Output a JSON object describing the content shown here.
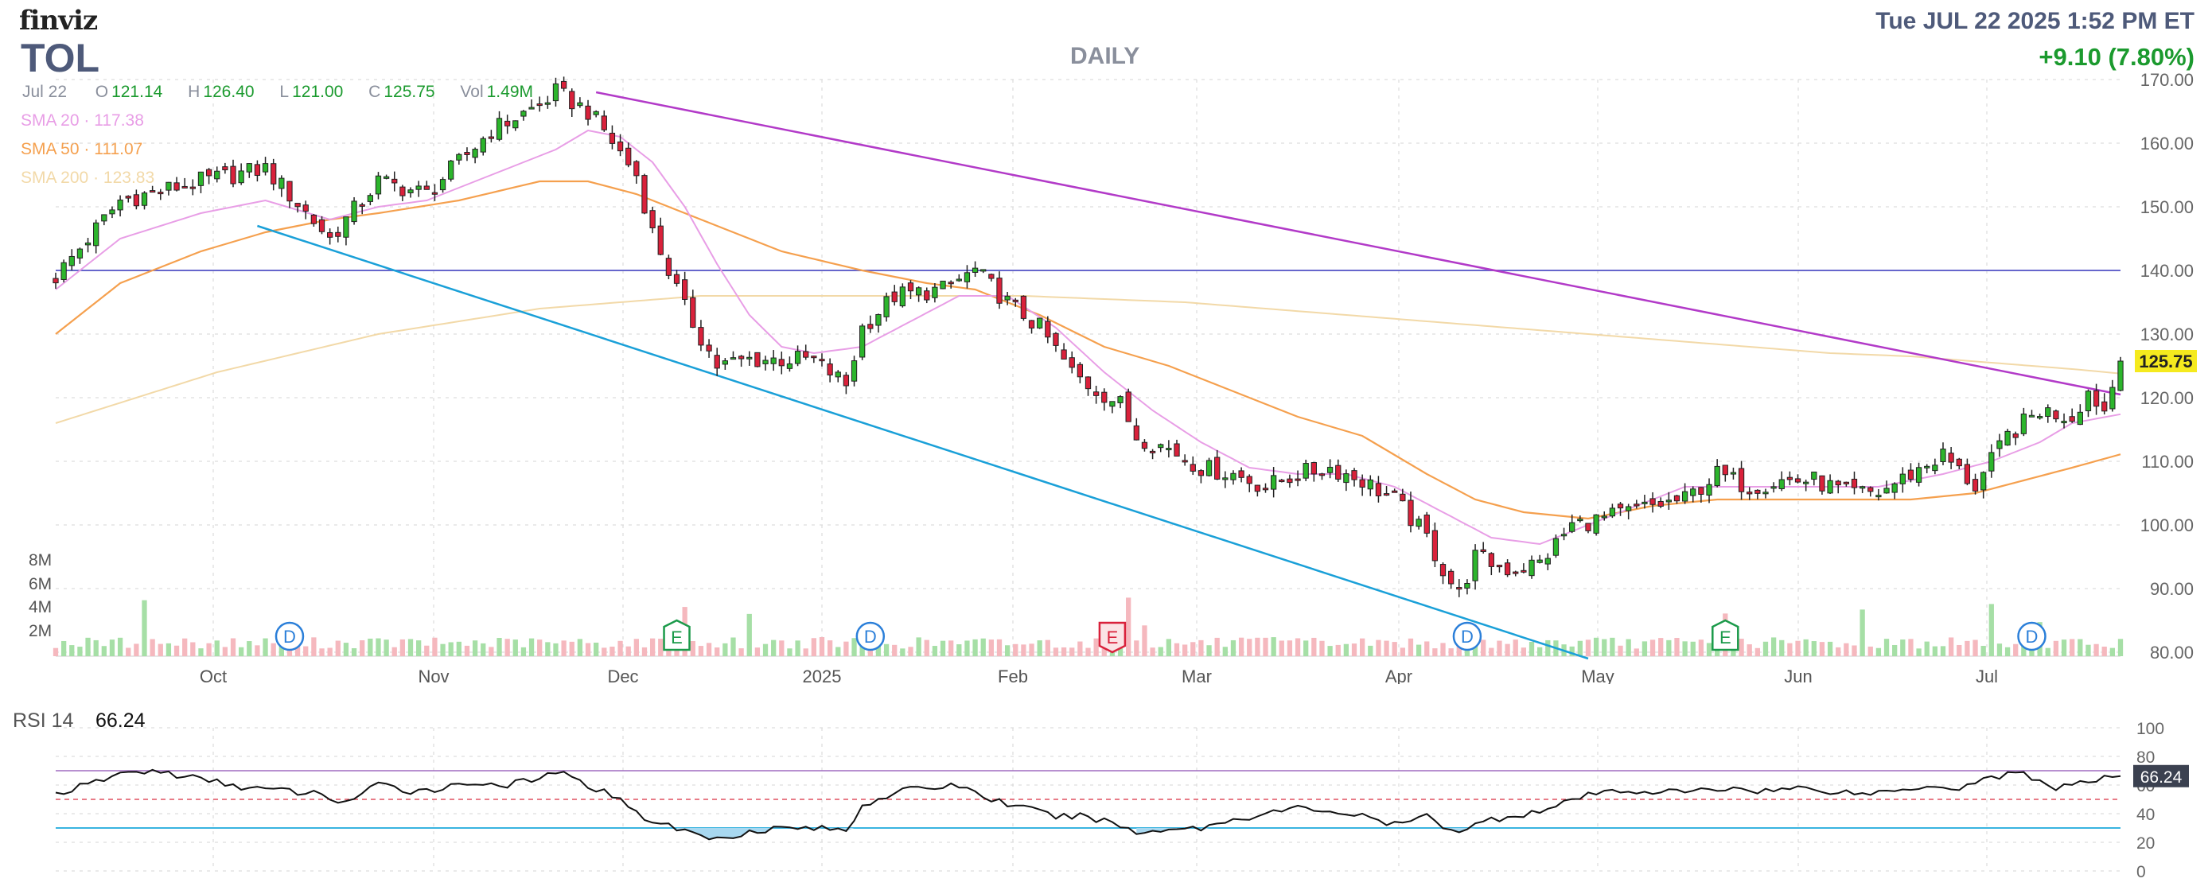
{
  "header": {
    "logo": "finviz",
    "ticker": "TOL",
    "timeframe": "DAILY",
    "datetime": "Tue JUL 22 2025 1:52 PM ET",
    "change": "+9.10 (7.80%)"
  },
  "ohlc": {
    "date": "Jul 22",
    "open_key": "O",
    "open": "121.14",
    "high_key": "H",
    "high": "126.40",
    "low_key": "L",
    "low": "121.00",
    "close_key": "C",
    "close": "125.75",
    "vol_key": "Vol",
    "vol": "1.49M"
  },
  "indicators": [
    {
      "label": "SMA 20",
      "value": "117.38",
      "color": "#e89ee6"
    },
    {
      "label": "SMA 50",
      "value": "111.07",
      "color": "#f5a04e"
    },
    {
      "label": "SMA 200",
      "value": "123.83",
      "color": "#f2d9a8"
    }
  ],
  "colors": {
    "up": "#2cb52c",
    "down": "#d9213b",
    "up_vol": "#a6dfa6",
    "down_vol": "#f5b8be",
    "resistance": "#b23ac8",
    "support": "#1aa0d8",
    "level": "#6666cc",
    "rsi": "#111111"
  },
  "chart_data": [
    {
      "type": "candlestick",
      "title": "TOL",
      "x_labels": [
        "Oct",
        "Nov",
        "Dec",
        "2025",
        "Feb",
        "Mar",
        "Apr",
        "May",
        "Jun",
        "Jul"
      ],
      "y_ticks": [
        "170.00",
        "160.00",
        "150.00",
        "140.00",
        "130.00",
        "120.00",
        "110.00",
        "100.00",
        "90.00",
        "80.00"
      ],
      "ylim": [
        80,
        170
      ],
      "last_price_tag": "125.75",
      "volume_ticks": [
        "8M",
        "6M",
        "4M",
        "2M"
      ],
      "horizontal_level": 140,
      "anchors": [
        [
          0,
          139
        ],
        [
          8,
          151
        ],
        [
          18,
          154
        ],
        [
          26,
          156
        ],
        [
          34,
          145
        ],
        [
          40,
          154
        ],
        [
          46,
          152
        ],
        [
          54,
          162
        ],
        [
          60,
          166
        ],
        [
          62,
          168
        ],
        [
          66,
          165
        ],
        [
          68,
          162
        ],
        [
          72,
          155
        ],
        [
          74,
          146
        ],
        [
          78,
          134
        ],
        [
          82,
          125
        ],
        [
          86,
          126
        ],
        [
          90,
          126
        ],
        [
          94,
          126
        ],
        [
          98,
          122
        ],
        [
          100,
          131
        ],
        [
          104,
          136
        ],
        [
          110,
          137
        ],
        [
          114,
          140
        ],
        [
          118,
          135
        ],
        [
          122,
          131
        ],
        [
          126,
          124
        ],
        [
          128,
          122
        ],
        [
          132,
          119
        ],
        [
          134,
          114
        ],
        [
          138,
          112
        ],
        [
          142,
          109
        ],
        [
          146,
          108
        ],
        [
          150,
          106
        ],
        [
          154,
          108
        ],
        [
          158,
          109
        ],
        [
          162,
          107
        ],
        [
          166,
          104
        ],
        [
          170,
          98
        ],
        [
          172,
          93
        ],
        [
          174,
          89
        ],
        [
          176,
          95
        ],
        [
          180,
          93
        ],
        [
          184,
          94
        ],
        [
          188,
          100
        ],
        [
          192,
          101
        ],
        [
          198,
          103
        ],
        [
          202,
          104
        ],
        [
          206,
          108
        ],
        [
          210,
          106
        ],
        [
          214,
          107
        ],
        [
          218,
          107
        ],
        [
          222,
          105
        ],
        [
          226,
          105
        ],
        [
          230,
          108
        ],
        [
          234,
          111
        ],
        [
          238,
          106
        ],
        [
          242,
          114
        ],
        [
          246,
          118
        ],
        [
          250,
          117
        ],
        [
          252,
          121
        ],
        [
          254,
          118
        ],
        [
          256,
          125.75
        ]
      ],
      "sma20": [
        [
          0,
          137
        ],
        [
          8,
          145
        ],
        [
          18,
          149
        ],
        [
          26,
          151
        ],
        [
          34,
          148
        ],
        [
          40,
          150
        ],
        [
          46,
          151
        ],
        [
          54,
          155
        ],
        [
          62,
          159
        ],
        [
          66,
          162
        ],
        [
          70,
          161
        ],
        [
          74,
          157
        ],
        [
          78,
          150
        ],
        [
          82,
          141
        ],
        [
          86,
          133
        ],
        [
          90,
          128
        ],
        [
          94,
          127
        ],
        [
          100,
          128
        ],
        [
          106,
          132
        ],
        [
          112,
          136
        ],
        [
          118,
          136
        ],
        [
          124,
          131
        ],
        [
          130,
          124
        ],
        [
          136,
          118
        ],
        [
          142,
          113
        ],
        [
          148,
          109
        ],
        [
          154,
          108
        ],
        [
          160,
          108
        ],
        [
          166,
          106
        ],
        [
          172,
          102
        ],
        [
          178,
          98
        ],
        [
          184,
          97
        ],
        [
          190,
          100
        ],
        [
          196,
          103
        ],
        [
          202,
          106
        ],
        [
          210,
          106
        ],
        [
          218,
          106
        ],
        [
          226,
          106
        ],
        [
          234,
          108
        ],
        [
          240,
          110
        ],
        [
          246,
          113
        ],
        [
          250,
          116
        ],
        [
          256,
          117.4
        ]
      ],
      "sma50": [
        [
          0,
          130
        ],
        [
          8,
          138
        ],
        [
          18,
          143
        ],
        [
          26,
          146
        ],
        [
          34,
          148
        ],
        [
          40,
          149
        ],
        [
          50,
          151
        ],
        [
          60,
          154
        ],
        [
          66,
          154
        ],
        [
          72,
          152
        ],
        [
          80,
          148
        ],
        [
          90,
          143
        ],
        [
          100,
          140
        ],
        [
          108,
          138
        ],
        [
          114,
          137
        ],
        [
          122,
          133
        ],
        [
          130,
          128
        ],
        [
          138,
          125
        ],
        [
          146,
          121
        ],
        [
          154,
          117
        ],
        [
          162,
          114
        ],
        [
          170,
          108
        ],
        [
          176,
          104
        ],
        [
          182,
          102
        ],
        [
          190,
          101
        ],
        [
          198,
          103
        ],
        [
          206,
          104
        ],
        [
          214,
          104
        ],
        [
          222,
          104
        ],
        [
          230,
          104
        ],
        [
          238,
          105
        ],
        [
          244,
          107
        ],
        [
          250,
          109
        ],
        [
          256,
          111.1
        ]
      ],
      "sma200": [
        [
          0,
          116
        ],
        [
          10,
          120
        ],
        [
          20,
          124
        ],
        [
          30,
          127
        ],
        [
          40,
          130
        ],
        [
          50,
          132
        ],
        [
          60,
          134
        ],
        [
          70,
          135
        ],
        [
          80,
          136
        ],
        [
          90,
          136
        ],
        [
          100,
          136
        ],
        [
          110,
          136
        ],
        [
          120,
          136
        ],
        [
          130,
          135.5
        ],
        [
          140,
          135
        ],
        [
          150,
          134
        ],
        [
          160,
          133
        ],
        [
          170,
          132
        ],
        [
          180,
          131
        ],
        [
          190,
          130
        ],
        [
          200,
          129
        ],
        [
          210,
          128
        ],
        [
          220,
          127
        ],
        [
          230,
          126.5
        ],
        [
          240,
          125.5
        ],
        [
          250,
          124.5
        ],
        [
          256,
          123.8
        ]
      ],
      "resistance_line": [
        [
          67,
          168
        ],
        [
          256,
          120.5
        ]
      ],
      "support_line": [
        [
          25,
          147
        ],
        [
          190,
          79
        ]
      ],
      "events": [
        {
          "label": "D",
          "type": "dividend",
          "bar": 29
        },
        {
          "label": "E",
          "type": "earnings",
          "bar": 77
        },
        {
          "label": "D",
          "type": "dividend",
          "bar": 101
        },
        {
          "label": "E",
          "type": "earnings-down",
          "bar": 131
        },
        {
          "label": "D",
          "type": "dividend",
          "bar": 175
        },
        {
          "label": "E",
          "type": "earnings",
          "bar": 207
        },
        {
          "label": "D",
          "type": "dividend",
          "bar": 245
        }
      ]
    },
    {
      "type": "line",
      "title": "RSI 14",
      "current": "66.24",
      "y_ticks": [
        "100",
        "80",
        "60",
        "40",
        "20",
        "0"
      ],
      "ylim": [
        0,
        100
      ],
      "overbought": 70,
      "oversold": 30,
      "midline": 50,
      "anchors": [
        [
          0,
          54
        ],
        [
          4,
          60
        ],
        [
          8,
          68
        ],
        [
          12,
          70
        ],
        [
          16,
          66
        ],
        [
          20,
          62
        ],
        [
          24,
          58
        ],
        [
          28,
          56
        ],
        [
          32,
          54
        ],
        [
          36,
          48
        ],
        [
          40,
          60
        ],
        [
          44,
          56
        ],
        [
          48,
          58
        ],
        [
          52,
          62
        ],
        [
          56,
          60
        ],
        [
          60,
          64
        ],
        [
          62,
          70
        ],
        [
          64,
          64
        ],
        [
          66,
          60
        ],
        [
          68,
          55
        ],
        [
          70,
          52
        ],
        [
          72,
          40
        ],
        [
          74,
          35
        ],
        [
          78,
          28
        ],
        [
          82,
          22
        ],
        [
          86,
          28
        ],
        [
          90,
          30
        ],
        [
          94,
          30
        ],
        [
          98,
          28
        ],
        [
          100,
          46
        ],
        [
          104,
          55
        ],
        [
          108,
          58
        ],
        [
          112,
          60
        ],
        [
          116,
          50
        ],
        [
          120,
          44
        ],
        [
          124,
          38
        ],
        [
          128,
          38
        ],
        [
          132,
          32
        ],
        [
          134,
          26
        ],
        [
          138,
          30
        ],
        [
          142,
          30
        ],
        [
          146,
          36
        ],
        [
          150,
          40
        ],
        [
          154,
          44
        ],
        [
          158,
          42
        ],
        [
          162,
          38
        ],
        [
          166,
          32
        ],
        [
          170,
          38
        ],
        [
          172,
          32
        ],
        [
          174,
          28
        ],
        [
          178,
          36
        ],
        [
          182,
          40
        ],
        [
          186,
          44
        ],
        [
          188,
          50
        ],
        [
          192,
          55
        ],
        [
          196,
          56
        ],
        [
          200,
          55
        ],
        [
          204,
          56
        ],
        [
          208,
          58
        ],
        [
          212,
          56
        ],
        [
          216,
          58
        ],
        [
          220,
          56
        ],
        [
          224,
          54
        ],
        [
          228,
          56
        ],
        [
          232,
          60
        ],
        [
          236,
          58
        ],
        [
          240,
          66
        ],
        [
          244,
          68
        ],
        [
          248,
          58
        ],
        [
          252,
          62
        ],
        [
          256,
          66.24
        ]
      ]
    }
  ]
}
